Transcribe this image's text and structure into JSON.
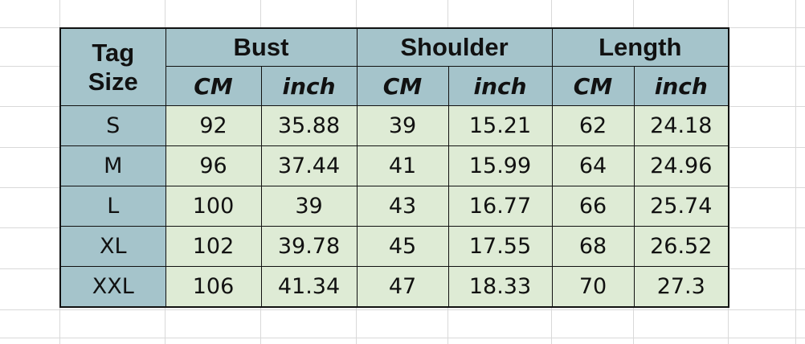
{
  "colors": {
    "header_bg": "#a5c4cb",
    "data_bg": "#deebd5",
    "border": "#111111"
  },
  "headers": {
    "tag_line1": "Tag",
    "tag_line2": "Size",
    "groups": [
      "Bust",
      "Shoulder",
      "Length"
    ],
    "units": [
      "CM",
      "inch",
      "CM",
      "inch",
      "CM",
      "inch"
    ]
  },
  "rows": [
    {
      "size": "S",
      "values": [
        "92",
        "35.88",
        "39",
        "15.21",
        "62",
        "24.18"
      ]
    },
    {
      "size": "M",
      "values": [
        "96",
        "37.44",
        "41",
        "15.99",
        "64",
        "24.96"
      ]
    },
    {
      "size": "L",
      "values": [
        "100",
        "39",
        "43",
        "16.77",
        "66",
        "25.74"
      ]
    },
    {
      "size": "XL",
      "values": [
        "102",
        "39.78",
        "45",
        "17.55",
        "68",
        "26.52"
      ]
    },
    {
      "size": "XXL",
      "values": [
        "106",
        "41.34",
        "47",
        "18.33",
        "70",
        "27.3"
      ]
    }
  ]
}
